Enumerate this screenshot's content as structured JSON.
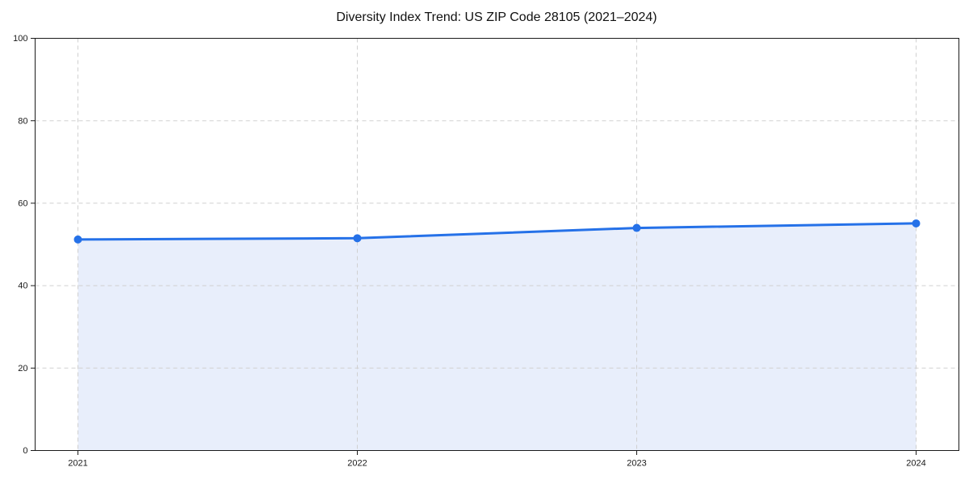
{
  "chart_data": {
    "type": "area",
    "title": "Diversity Index Trend: US ZIP Code 28105 (2021–2024)",
    "categories": [
      "2021",
      "2022",
      "2023",
      "2024"
    ],
    "values": [
      51.2,
      51.5,
      54.0,
      55.1
    ],
    "xlabel": "",
    "ylabel": "",
    "ylim": [
      0,
      100
    ],
    "y_ticks": [
      0,
      20,
      40,
      60,
      80,
      100
    ],
    "grid": {
      "style": "dashed",
      "horizontal_at": [
        20,
        40,
        60,
        80
      ],
      "vertical_at_categories": true
    },
    "legend": "none",
    "marker": "circle",
    "colors": {
      "line": "#2571e8",
      "marker": "#2571e8",
      "fill": "#e8eefb",
      "grid": "#d0d0d0",
      "axis": "#1a1a1a",
      "tick_labels": "#1a1a1a",
      "title": "#111111",
      "background": "#ffffff"
    }
  }
}
